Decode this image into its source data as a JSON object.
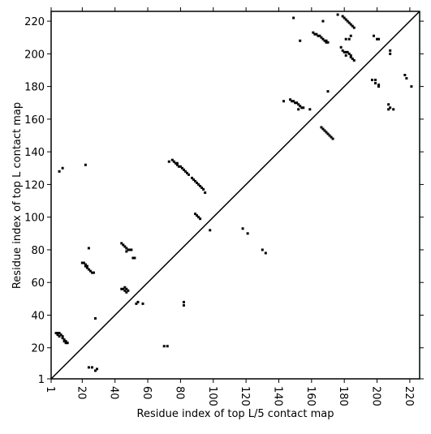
{
  "chart_data": {
    "type": "scatter",
    "xlabel": "Residue index of top L/5 contact map",
    "ylabel": "Residue index of top L contact map",
    "xlim": [
      1,
      226
    ],
    "ylim": [
      1,
      226
    ],
    "xticks": [
      1,
      20,
      40,
      60,
      80,
      100,
      120,
      140,
      160,
      180,
      200,
      220
    ],
    "yticks": [
      1,
      20,
      40,
      60,
      80,
      100,
      120,
      140,
      160,
      180,
      200,
      220
    ],
    "color": "#000000",
    "diagonal": true,
    "x": [
      6,
      8,
      22,
      4,
      5,
      6,
      7,
      5,
      6,
      8,
      8,
      9,
      9,
      10,
      10,
      11,
      24,
      20,
      21,
      22,
      22,
      23,
      23,
      24,
      25,
      26,
      27,
      28,
      24,
      26,
      28,
      29,
      44,
      45,
      46,
      47,
      48,
      49,
      50,
      47,
      51,
      52,
      44,
      45,
      46,
      47,
      46,
      47,
      48,
      54,
      53,
      57,
      70,
      72,
      73,
      75,
      76,
      77,
      78,
      78,
      79,
      80,
      81,
      82,
      83,
      84,
      85,
      87,
      88,
      89,
      90,
      91,
      92,
      93,
      94,
      95,
      89,
      90,
      91,
      92,
      82,
      82,
      98,
      118,
      121,
      130,
      132,
      143,
      147,
      148,
      149,
      150,
      151,
      152,
      153,
      154,
      155,
      152,
      149,
      153,
      159,
      161,
      162,
      163,
      164,
      165,
      166,
      167,
      168,
      169,
      170,
      167,
      169,
      166,
      167,
      168,
      169,
      170,
      171,
      172,
      173,
      170,
      176,
      179,
      180,
      181,
      182,
      183,
      184,
      185,
      186,
      183,
      181,
      184,
      178,
      179,
      180,
      181,
      182,
      183,
      181,
      184,
      184,
      185,
      186,
      198,
      200,
      201,
      208,
      208,
      197,
      199,
      201,
      199,
      201,
      207,
      208,
      210,
      207,
      217,
      218,
      221
    ],
    "values": [
      128,
      130,
      132,
      29,
      29,
      29,
      28,
      28,
      27,
      27,
      26,
      25,
      24,
      24,
      23,
      23,
      81,
      72,
      72,
      71,
      70,
      70,
      69,
      68,
      67,
      66,
      66,
      38,
      8,
      8,
      6,
      7,
      84,
      83,
      82,
      81,
      80,
      80,
      80,
      79,
      75,
      75,
      56,
      56,
      57,
      56,
      55,
      54,
      55,
      48,
      47,
      47,
      21,
      21,
      134,
      135,
      134,
      133,
      133,
      132,
      131,
      131,
      130,
      129,
      128,
      127,
      126,
      124,
      123,
      122,
      121,
      120,
      119,
      118,
      117,
      115,
      102,
      101,
      100,
      99,
      48,
      46,
      92,
      93,
      90,
      80,
      78,
      171,
      172,
      171,
      171,
      170,
      170,
      169,
      168,
      167,
      167,
      166,
      222,
      208,
      166,
      213,
      212,
      212,
      211,
      211,
      210,
      209,
      208,
      207,
      207,
      220,
      208,
      155,
      154,
      153,
      152,
      151,
      150,
      149,
      148,
      177,
      224,
      223,
      222,
      221,
      220,
      219,
      218,
      217,
      216,
      209,
      209,
      211,
      204,
      202,
      201,
      201,
      201,
      200,
      199,
      199,
      198,
      197,
      196,
      211,
      209,
      209,
      202,
      200,
      184,
      184,
      181,
      182,
      180,
      169,
      167,
      166,
      166,
      187,
      185,
      180
    ]
  }
}
